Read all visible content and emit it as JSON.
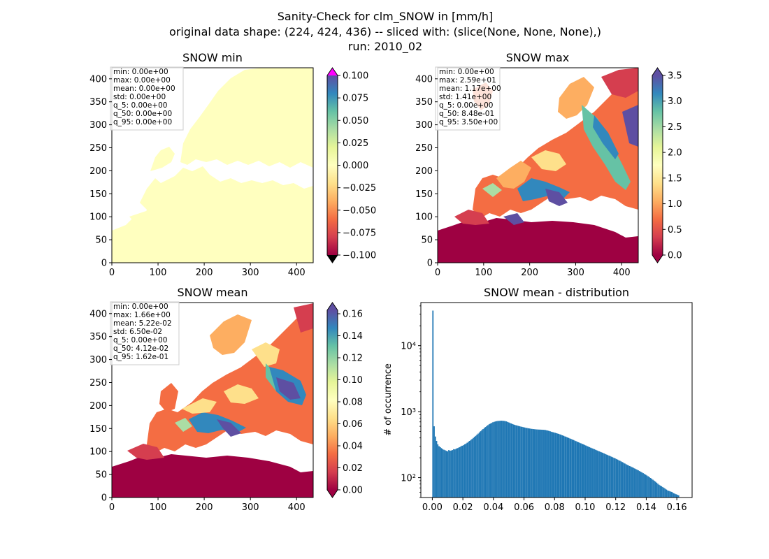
{
  "suptitle": {
    "line1": "Sanity-Check for clm_SNOW in [mm/h]",
    "line2": "original data shape: (224, 424, 436) -- sliced with: (slice(None, None, None),)",
    "line3": "run: 2010_02"
  },
  "colors": {
    "spectral": [
      "#9e0142",
      "#d53e4f",
      "#f46d43",
      "#fdae61",
      "#fee08b",
      "#ffffbf",
      "#e6f598",
      "#abdda4",
      "#66c2a5",
      "#3288bd",
      "#5e4fa2"
    ],
    "over": "#ff00ff",
    "under": "#000000",
    "land_min": "#ffffbf",
    "hist_bar": "#1f77b4"
  },
  "chart_data": [
    {
      "type": "heatmap",
      "title": "SNOW min",
      "x_ticks": [
        "0",
        "100",
        "200",
        "300",
        "400"
      ],
      "y_ticks": [
        "0",
        "50",
        "100",
        "150",
        "200",
        "250",
        "300",
        "350",
        "400"
      ],
      "xlim": [
        0,
        436
      ],
      "ylim": [
        0,
        424
      ],
      "colorbar_ticks": [
        "0.100",
        "0.075",
        "0.050",
        "0.025",
        "0.000",
        "−0.025",
        "−0.050",
        "−0.075",
        "−0.100"
      ],
      "colorbar_range": [
        -0.1,
        0.1
      ],
      "stats": [
        "min: 0.00e+00",
        "max: 0.00e+00",
        "mean: 0.00e+00",
        "std: 0.00e+00",
        "q_5: 0.00e+00",
        "q_50: 0.00e+00",
        "q_95: 0.00e+00"
      ]
    },
    {
      "type": "heatmap",
      "title": "SNOW max",
      "x_ticks": [
        "0",
        "100",
        "200",
        "300",
        "400"
      ],
      "y_ticks": [
        "0",
        "50",
        "100",
        "150",
        "200",
        "250",
        "300",
        "350",
        "400"
      ],
      "xlim": [
        0,
        436
      ],
      "ylim": [
        0,
        424
      ],
      "colorbar_ticks": [
        "3.5",
        "3.0",
        "2.5",
        "2.0",
        "1.5",
        "1.0",
        "0.5",
        "0.0"
      ],
      "colorbar_range": [
        0,
        3.5
      ],
      "stats": [
        "min: 0.00e+00",
        "max: 2.59e+01",
        "mean: 1.17e+00",
        "std: 1.41e+00",
        "q_5: 0.00e+00",
        "q_50: 8.48e-01",
        "q_95: 3.50e+00"
      ]
    },
    {
      "type": "heatmap",
      "title": "SNOW mean",
      "x_ticks": [
        "0",
        "100",
        "200",
        "300",
        "400"
      ],
      "y_ticks": [
        "0",
        "50",
        "100",
        "150",
        "200",
        "250",
        "300",
        "350",
        "400"
      ],
      "xlim": [
        0,
        436
      ],
      "ylim": [
        0,
        424
      ],
      "colorbar_ticks": [
        "0.16",
        "0.14",
        "0.12",
        "0.10",
        "0.08",
        "0.06",
        "0.04",
        "0.02",
        "0.00"
      ],
      "colorbar_range": [
        0,
        0.16
      ],
      "stats": [
        "min: 0.00e+00",
        "max: 1.66e+00",
        "mean: 5.22e-02",
        "std: 6.50e-02",
        "q_5: 0.00e+00",
        "q_50: 4.12e-02",
        "q_95: 1.62e-01"
      ]
    },
    {
      "type": "bar",
      "title": "SNOW mean - distribution",
      "xlabel": "",
      "ylabel": "# of occurrence",
      "yscale": "log",
      "xlim": [
        -0.0075,
        0.17
      ],
      "ylim": [
        50,
        45000
      ],
      "x_ticks": [
        "0.00",
        "0.02",
        "0.04",
        "0.06",
        "0.08",
        "0.10",
        "0.12",
        "0.14",
        "0.16"
      ],
      "y_ticks": [
        "10²",
        "10³",
        "10⁴"
      ],
      "x": [
        0.0,
        0.02,
        0.04,
        0.06,
        0.08,
        0.1,
        0.12,
        0.14,
        0.16
      ],
      "bins": [
        [
          0.0,
          34000
        ],
        [
          0.0008,
          600
        ],
        [
          0.0016,
          420
        ],
        [
          0.0024,
          360
        ],
        [
          0.0032,
          320
        ],
        [
          0.004,
          300
        ],
        [
          0.0048,
          290
        ],
        [
          0.0056,
          280
        ],
        [
          0.0064,
          270
        ],
        [
          0.0072,
          265
        ],
        [
          0.008,
          260
        ],
        [
          0.0088,
          255
        ],
        [
          0.0096,
          250
        ],
        [
          0.0104,
          262
        ],
        [
          0.0112,
          256
        ],
        [
          0.012,
          258
        ],
        [
          0.0128,
          262
        ],
        [
          0.0136,
          270
        ],
        [
          0.0144,
          268
        ],
        [
          0.0152,
          275
        ],
        [
          0.016,
          280
        ],
        [
          0.0168,
          285
        ],
        [
          0.0176,
          290
        ],
        [
          0.0184,
          300
        ],
        [
          0.0192,
          305
        ],
        [
          0.02,
          310
        ],
        [
          0.0208,
          320
        ],
        [
          0.0216,
          328
        ],
        [
          0.0224,
          338
        ],
        [
          0.0232,
          350
        ],
        [
          0.024,
          360
        ],
        [
          0.0248,
          372
        ],
        [
          0.0256,
          385
        ],
        [
          0.0264,
          400
        ],
        [
          0.0272,
          415
        ],
        [
          0.028,
          430
        ],
        [
          0.0288,
          448
        ],
        [
          0.0296,
          465
        ],
        [
          0.0304,
          485
        ],
        [
          0.0312,
          505
        ],
        [
          0.032,
          525
        ],
        [
          0.0328,
          545
        ],
        [
          0.0336,
          565
        ],
        [
          0.0344,
          585
        ],
        [
          0.0352,
          605
        ],
        [
          0.036,
          625
        ],
        [
          0.0368,
          645
        ],
        [
          0.0376,
          660
        ],
        [
          0.0384,
          675
        ],
        [
          0.0392,
          690
        ],
        [
          0.04,
          700
        ],
        [
          0.0408,
          710
        ],
        [
          0.0416,
          718
        ],
        [
          0.0424,
          722
        ],
        [
          0.0432,
          725
        ],
        [
          0.044,
          728
        ],
        [
          0.0448,
          730
        ],
        [
          0.0456,
          728
        ],
        [
          0.0464,
          725
        ],
        [
          0.0472,
          720
        ],
        [
          0.048,
          712
        ],
        [
          0.0488,
          700
        ],
        [
          0.0496,
          688
        ],
        [
          0.0504,
          675
        ],
        [
          0.0512,
          662
        ],
        [
          0.052,
          650
        ],
        [
          0.0528,
          640
        ],
        [
          0.0536,
          630
        ],
        [
          0.0544,
          622
        ],
        [
          0.0552,
          615
        ],
        [
          0.056,
          608
        ],
        [
          0.0568,
          600
        ],
        [
          0.0576,
          594
        ],
        [
          0.0584,
          588
        ],
        [
          0.0592,
          582
        ],
        [
          0.06,
          576
        ],
        [
          0.0608,
          570
        ],
        [
          0.0616,
          565
        ],
        [
          0.0624,
          560
        ],
        [
          0.0632,
          556
        ],
        [
          0.064,
          552
        ],
        [
          0.0648,
          548
        ],
        [
          0.0656,
          545
        ],
        [
          0.0664,
          542
        ],
        [
          0.0672,
          540
        ],
        [
          0.068,
          538
        ],
        [
          0.0688,
          536
        ],
        [
          0.0696,
          535
        ],
        [
          0.0704,
          534
        ],
        [
          0.0712,
          533
        ],
        [
          0.072,
          532
        ],
        [
          0.0728,
          530
        ],
        [
          0.0736,
          527
        ],
        [
          0.0744,
          522
        ],
        [
          0.0752,
          517
        ],
        [
          0.076,
          510
        ],
        [
          0.0768,
          503
        ],
        [
          0.0776,
          496
        ],
        [
          0.0784,
          490
        ],
        [
          0.0792,
          484
        ],
        [
          0.08,
          478
        ],
        [
          0.0808,
          472
        ],
        [
          0.0816,
          466
        ],
        [
          0.0824,
          460
        ],
        [
          0.0832,
          452
        ],
        [
          0.084,
          445
        ],
        [
          0.0848,
          438
        ],
        [
          0.0856,
          430
        ],
        [
          0.0864,
          422
        ],
        [
          0.0872,
          415
        ],
        [
          0.088,
          408
        ],
        [
          0.0888,
          400
        ],
        [
          0.0896,
          393
        ],
        [
          0.0904,
          386
        ],
        [
          0.0912,
          379
        ],
        [
          0.092,
          372
        ],
        [
          0.0928,
          365
        ],
        [
          0.0936,
          358
        ],
        [
          0.0944,
          351
        ],
        [
          0.0952,
          344
        ],
        [
          0.096,
          338
        ],
        [
          0.0968,
          332
        ],
        [
          0.0976,
          326
        ],
        [
          0.0984,
          320
        ],
        [
          0.0992,
          314
        ],
        [
          0.1,
          308
        ],
        [
          0.1008,
          302
        ],
        [
          0.1016,
          296
        ],
        [
          0.1024,
          290
        ],
        [
          0.1032,
          285
        ],
        [
          0.104,
          280
        ],
        [
          0.1048,
          275
        ],
        [
          0.1056,
          270
        ],
        [
          0.1064,
          265
        ],
        [
          0.1072,
          260
        ],
        [
          0.108,
          255
        ],
        [
          0.1088,
          250
        ],
        [
          0.1096,
          246
        ],
        [
          0.1104,
          242
        ],
        [
          0.1112,
          238
        ],
        [
          0.112,
          233
        ],
        [
          0.1128,
          228
        ],
        [
          0.1136,
          224
        ],
        [
          0.1144,
          220
        ],
        [
          0.1152,
          216
        ],
        [
          0.116,
          212
        ],
        [
          0.1168,
          208
        ],
        [
          0.1176,
          204
        ],
        [
          0.1184,
          200
        ],
        [
          0.1192,
          196
        ],
        [
          0.12,
          192
        ],
        [
          0.1208,
          188
        ],
        [
          0.1216,
          184
        ],
        [
          0.1224,
          180
        ],
        [
          0.1232,
          176
        ],
        [
          0.124,
          172
        ],
        [
          0.1248,
          168
        ],
        [
          0.1256,
          164
        ],
        [
          0.1264,
          160
        ],
        [
          0.1272,
          156
        ],
        [
          0.128,
          153
        ],
        [
          0.1288,
          150
        ],
        [
          0.1296,
          147
        ],
        [
          0.1304,
          144
        ],
        [
          0.1312,
          141
        ],
        [
          0.132,
          138
        ],
        [
          0.1328,
          135
        ],
        [
          0.1336,
          132
        ],
        [
          0.1344,
          129
        ],
        [
          0.1352,
          126
        ],
        [
          0.136,
          123
        ],
        [
          0.1368,
          120
        ],
        [
          0.1376,
          117
        ],
        [
          0.1384,
          114
        ],
        [
          0.1392,
          111
        ],
        [
          0.14,
          108
        ],
        [
          0.1408,
          105
        ],
        [
          0.1416,
          102
        ],
        [
          0.1424,
          99
        ],
        [
          0.1432,
          96
        ],
        [
          0.144,
          93
        ],
        [
          0.1448,
          90
        ],
        [
          0.1456,
          87
        ],
        [
          0.1464,
          84
        ],
        [
          0.1472,
          81
        ],
        [
          0.148,
          78
        ],
        [
          0.1488,
          76
        ],
        [
          0.1496,
          74
        ],
        [
          0.1504,
          72
        ],
        [
          0.1512,
          70
        ],
        [
          0.152,
          68
        ],
        [
          0.1528,
          66
        ],
        [
          0.1536,
          64
        ],
        [
          0.1544,
          63
        ],
        [
          0.1552,
          62
        ],
        [
          0.156,
          61
        ],
        [
          0.1568,
          60
        ],
        [
          0.1576,
          58
        ],
        [
          0.1584,
          57
        ],
        [
          0.1592,
          56
        ],
        [
          0.16,
          55
        ],
        [
          0.1608,
          54
        ]
      ]
    }
  ]
}
